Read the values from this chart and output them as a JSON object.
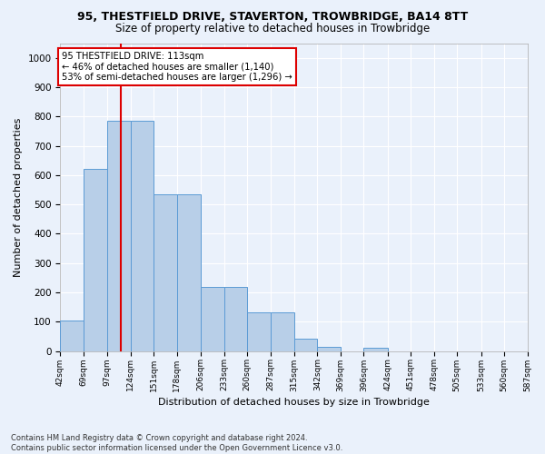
{
  "title": "95, THESTFIELD DRIVE, STAVERTON, TROWBRIDGE, BA14 8TT",
  "subtitle": "Size of property relative to detached houses in Trowbridge",
  "xlabel": "Distribution of detached houses by size in Trowbridge",
  "ylabel": "Number of detached properties",
  "bar_heights": [
    103,
    622,
    785,
    785,
    535,
    535,
    220,
    220,
    133,
    133,
    42,
    15,
    0,
    10,
    0,
    0,
    0,
    0,
    0,
    0
  ],
  "bin_edges": [
    42,
    69,
    97,
    124,
    151,
    178,
    206,
    233,
    260,
    287,
    315,
    342,
    369,
    396,
    424,
    451,
    478,
    505,
    533,
    560,
    587
  ],
  "tick_labels": [
    "42sqm",
    "69sqm",
    "97sqm",
    "124sqm",
    "151sqm",
    "178sqm",
    "206sqm",
    "233sqm",
    "260sqm",
    "287sqm",
    "315sqm",
    "342sqm",
    "369sqm",
    "396sqm",
    "424sqm",
    "451sqm",
    "478sqm",
    "505sqm",
    "533sqm",
    "560sqm",
    "587sqm"
  ],
  "bar_color": "#b8cfe8",
  "bar_edge_color": "#5b9bd5",
  "vline_x": 113,
  "vline_color": "#dd0000",
  "annotation_text": "95 THESTFIELD DRIVE: 113sqm\n← 46% of detached houses are smaller (1,140)\n53% of semi-detached houses are larger (1,296) →",
  "annotation_box_color": "white",
  "annotation_box_edge": "#dd0000",
  "ylim": [
    0,
    1050
  ],
  "yticks": [
    0,
    100,
    200,
    300,
    400,
    500,
    600,
    700,
    800,
    900,
    1000
  ],
  "footnote": "Contains HM Land Registry data © Crown copyright and database right 2024.\nContains public sector information licensed under the Open Government Licence v3.0.",
  "fig_bg_color": "#eaf1fb",
  "plot_bg_color": "#eaf1fb",
  "grid_color": "#ffffff",
  "title_fontsize": 9,
  "subtitle_fontsize": 8.5
}
